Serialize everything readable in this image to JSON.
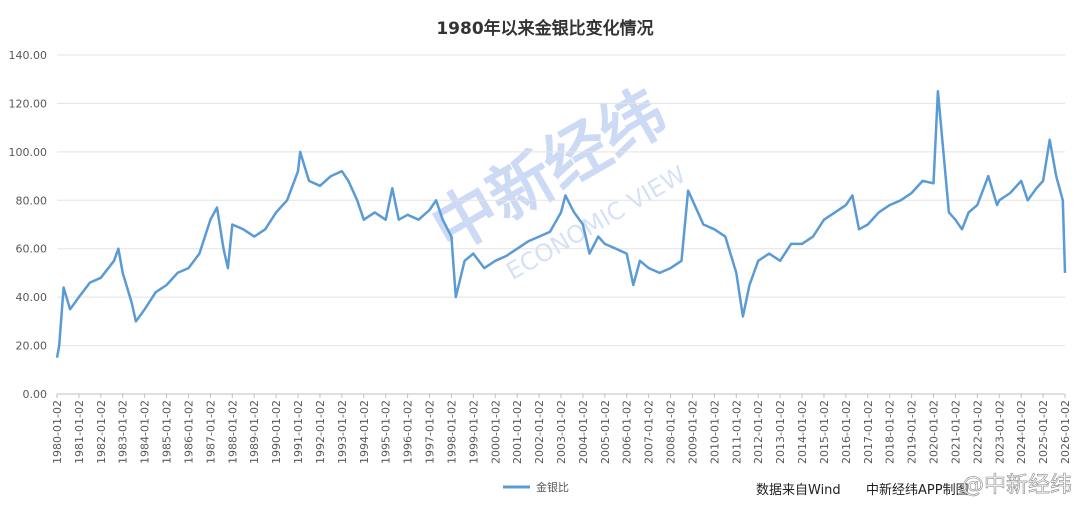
{
  "chart_data": {
    "type": "line",
    "title": "1980年以来金银比变化情况",
    "source": "数据来自Wind",
    "credit": "中新经纬APP制图",
    "watermark": "中新经纬",
    "watermark_sub": "ECONOMIC VIEW",
    "corner_watermark": "@中新经纬",
    "xlim": [
      1980,
      2026
    ],
    "xticks": [
      {
        "value": 1980,
        "label": "1980-01-02"
      },
      {
        "value": 1981,
        "label": "1981-01-02"
      },
      {
        "value": 1982,
        "label": "1982-01-02"
      },
      {
        "value": 1983,
        "label": "1983-01-02"
      },
      {
        "value": 1984,
        "label": "1984-01-02"
      },
      {
        "value": 1985,
        "label": "1985-01-02"
      },
      {
        "value": 1986,
        "label": "1986-01-02"
      },
      {
        "value": 1987,
        "label": "1987-01-02"
      },
      {
        "value": 1988,
        "label": "1988-01-02"
      },
      {
        "value": 1989,
        "label": "1989-01-02"
      },
      {
        "value": 1990,
        "label": "1990-01-02"
      },
      {
        "value": 1991,
        "label": "1991-01-02"
      },
      {
        "value": 1992,
        "label": "1992-01-02"
      },
      {
        "value": 1993,
        "label": "1993-01-02"
      },
      {
        "value": 1994,
        "label": "1994-01-02"
      },
      {
        "value": 1995,
        "label": "1995-01-02"
      },
      {
        "value": 1996,
        "label": "1996-01-02"
      },
      {
        "value": 1997,
        "label": "1997-01-02"
      },
      {
        "value": 1998,
        "label": "1998-01-02"
      },
      {
        "value": 1999,
        "label": "1999-01-02"
      },
      {
        "value": 2000,
        "label": "2000-01-02"
      },
      {
        "value": 2001,
        "label": "2001-01-02"
      },
      {
        "value": 2002,
        "label": "2002-01-02"
      },
      {
        "value": 2003,
        "label": "2003-01-02"
      },
      {
        "value": 2004,
        "label": "2004-01-02"
      },
      {
        "value": 2005,
        "label": "2005-01-02"
      },
      {
        "value": 2006,
        "label": "2006-01-02"
      },
      {
        "value": 2007,
        "label": "2007-01-02"
      },
      {
        "value": 2008,
        "label": "2008-01-02"
      },
      {
        "value": 2009,
        "label": "2009-01-02"
      },
      {
        "value": 2010,
        "label": "2010-01-02"
      },
      {
        "value": 2011,
        "label": "2011-01-02"
      },
      {
        "value": 2012,
        "label": "2012-01-02"
      },
      {
        "value": 2013,
        "label": "2013-01-02"
      },
      {
        "value": 2014,
        "label": "2014-01-02"
      },
      {
        "value": 2015,
        "label": "2015-01-02"
      },
      {
        "value": 2016,
        "label": "2016-01-02"
      },
      {
        "value": 2017,
        "label": "2017-01-02"
      },
      {
        "value": 2018,
        "label": "2018-01-02"
      },
      {
        "value": 2019,
        "label": "2019-01-02"
      },
      {
        "value": 2020,
        "label": "2020-01-02"
      },
      {
        "value": 2021,
        "label": "2021-01-02"
      },
      {
        "value": 2022,
        "label": "2022-01-02"
      },
      {
        "value": 2023,
        "label": "2023-01-02"
      },
      {
        "value": 2024,
        "label": "2024-01-02"
      },
      {
        "value": 2025,
        "label": "2025-01-02"
      },
      {
        "value": 2026,
        "label": "2026-01-02"
      }
    ],
    "ylim": [
      0,
      140
    ],
    "yticks": [
      {
        "value": 0,
        "label": "0.00"
      },
      {
        "value": 20,
        "label": "20.00"
      },
      {
        "value": 40,
        "label": "40.00"
      },
      {
        "value": 60,
        "label": "60.00"
      },
      {
        "value": 80,
        "label": "80.00"
      },
      {
        "value": 100,
        "label": "100.00"
      },
      {
        "value": 120,
        "label": "120.00"
      },
      {
        "value": 140,
        "label": "140.00"
      }
    ],
    "grid": true,
    "legend": "bottom",
    "x": [
      1980.0,
      1980.1,
      1980.3,
      1980.6,
      1981.0,
      1981.5,
      1982.0,
      1982.6,
      1982.8,
      1983.0,
      1983.4,
      1983.6,
      1984.0,
      1984.5,
      1985.0,
      1985.5,
      1986.0,
      1986.5,
      1987.0,
      1987.3,
      1987.6,
      1987.8,
      1988.0,
      1988.5,
      1989.0,
      1989.5,
      1990.0,
      1990.5,
      1991.0,
      1991.1,
      1991.5,
      1992.0,
      1992.5,
      1993.0,
      1993.3,
      1993.7,
      1994.0,
      1994.5,
      1995.0,
      1995.3,
      1995.6,
      1996.0,
      1996.5,
      1997.0,
      1997.3,
      1997.6,
      1998.0,
      1998.2,
      1998.6,
      1999.0,
      1999.5,
      2000.0,
      2000.5,
      2001.0,
      2001.5,
      2002.0,
      2002.5,
      2003.0,
      2003.2,
      2003.6,
      2004.0,
      2004.3,
      2004.7,
      2005.0,
      2005.5,
      2006.0,
      2006.3,
      2006.6,
      2007.0,
      2007.5,
      2008.0,
      2008.5,
      2008.8,
      2009.0,
      2009.5,
      2010.0,
      2010.5,
      2011.0,
      2011.3,
      2011.6,
      2012.0,
      2012.5,
      2013.0,
      2013.5,
      2014.0,
      2014.5,
      2015.0,
      2015.5,
      2016.0,
      2016.3,
      2016.6,
      2017.0,
      2017.5,
      2018.0,
      2018.5,
      2019.0,
      2019.5,
      2020.0,
      2020.2,
      2020.5,
      2020.7,
      2021.0,
      2021.3,
      2021.6,
      2022.0,
      2022.5,
      2022.9,
      2023.0,
      2023.5,
      2024.0,
      2024.3,
      2024.7,
      2025.0,
      2025.3,
      2025.6,
      2025.9,
      2026.0
    ],
    "series": [
      {
        "name": "金银比",
        "color": "#5b9bd5",
        "values": [
          15,
          20,
          44,
          35,
          40,
          46,
          48,
          55,
          60,
          50,
          38,
          30,
          35,
          42,
          45,
          50,
          52,
          58,
          72,
          77,
          60,
          52,
          70,
          68,
          65,
          68,
          75,
          80,
          92,
          100,
          88,
          86,
          90,
          92,
          88,
          80,
          72,
          75,
          72,
          85,
          72,
          74,
          72,
          76,
          80,
          72,
          65,
          40,
          55,
          58,
          52,
          55,
          57,
          60,
          63,
          65,
          67,
          75,
          82,
          75,
          70,
          58,
          65,
          62,
          60,
          58,
          45,
          55,
          52,
          50,
          52,
          55,
          84,
          80,
          70,
          68,
          65,
          50,
          32,
          45,
          55,
          58,
          55,
          62,
          62,
          65,
          72,
          75,
          78,
          82,
          68,
          70,
          75,
          78,
          80,
          83,
          88,
          87,
          125,
          95,
          75,
          72,
          68,
          75,
          78,
          90,
          78,
          80,
          83,
          88,
          80,
          85,
          88,
          105,
          90,
          80,
          50
        ]
      }
    ]
  }
}
